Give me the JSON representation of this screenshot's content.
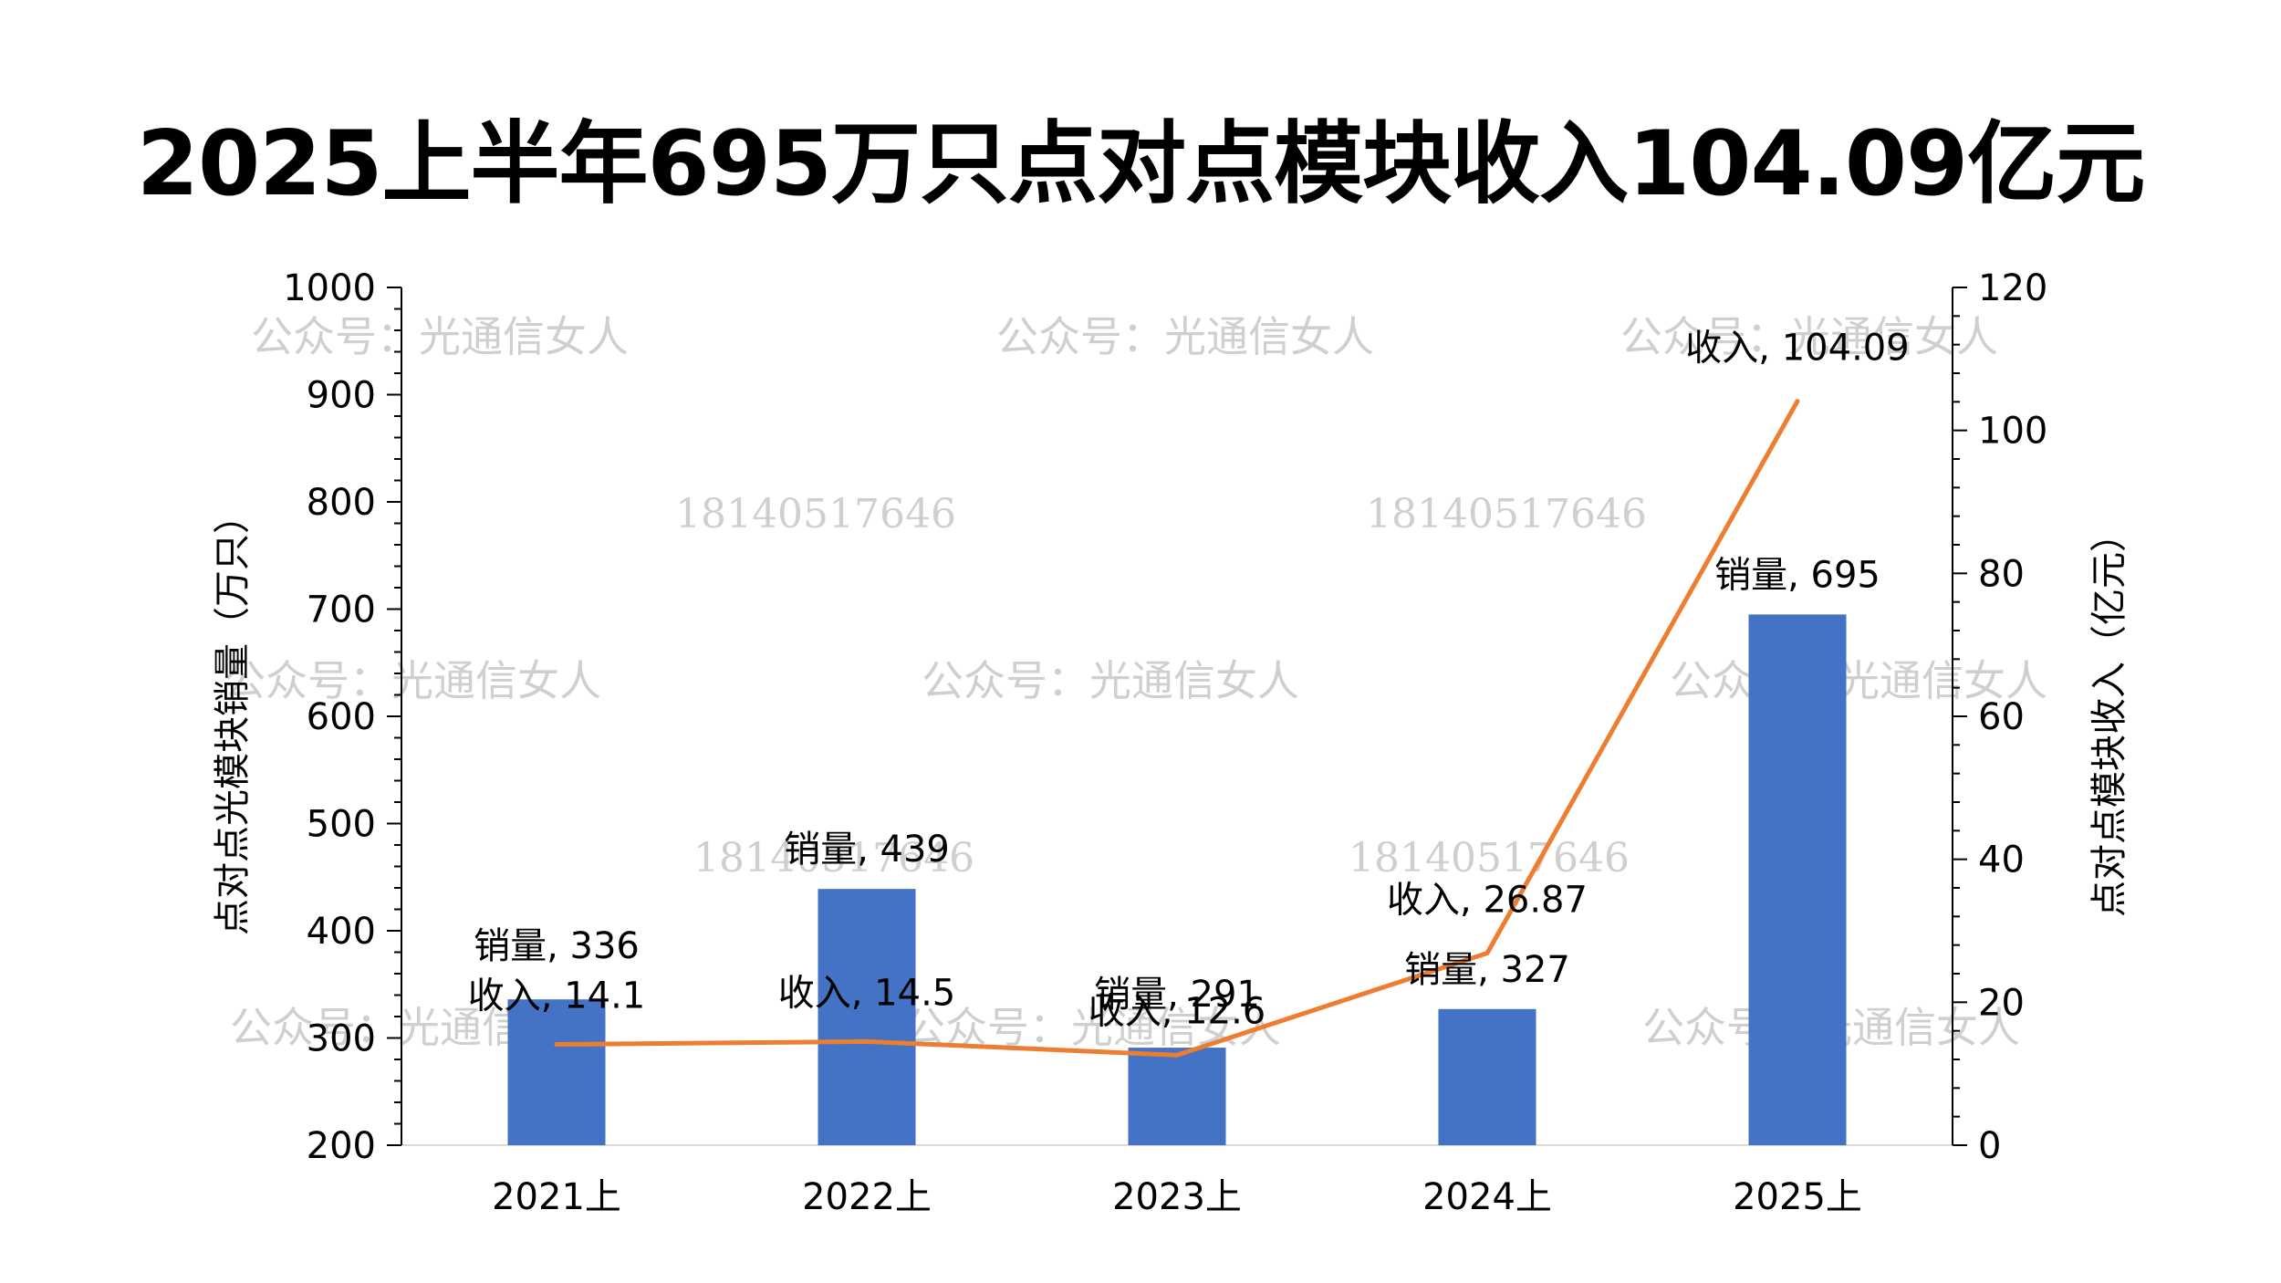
{
  "title": "2025上半年695万只点对点模块收入104.09亿元",
  "watermarks": {
    "account": "公众号：光通信女人",
    "phone": "18140517646"
  },
  "chart_data": {
    "type": "bar+line",
    "categories": [
      "2021上",
      "2022上",
      "2023上",
      "2024上",
      "2025上"
    ],
    "series": [
      {
        "name": "销量",
        "type": "bar",
        "axis": "left",
        "color": "#4472C4",
        "values": [
          336,
          439,
          291,
          327,
          695
        ]
      },
      {
        "name": "收入",
        "type": "line",
        "axis": "right",
        "color": "#ED7D31",
        "values": [
          14.1,
          14.5,
          12.6,
          26.87,
          104.09
        ]
      }
    ],
    "data_labels": {
      "bars": [
        "销量, 336",
        "销量, 439",
        "销量, 291",
        "销量, 327",
        "销量, 695"
      ],
      "line": [
        "收入, 14.1",
        "收入, 14.5",
        "收入, 12.6",
        "收入, 26.87",
        "收入, 104.09"
      ]
    },
    "y_left": {
      "label": "点对点光模块销量（万只）",
      "range": [
        200,
        1000
      ],
      "ticks": [
        "200",
        "300",
        "400",
        "500",
        "600",
        "700",
        "800",
        "900",
        "1000"
      ]
    },
    "y_right": {
      "label": "点对点模块收入（亿元）",
      "range": [
        0,
        120
      ],
      "ticks": [
        "0",
        "20",
        "40",
        "60",
        "80",
        "100",
        "120"
      ]
    },
    "grid": false,
    "legend": "none"
  }
}
